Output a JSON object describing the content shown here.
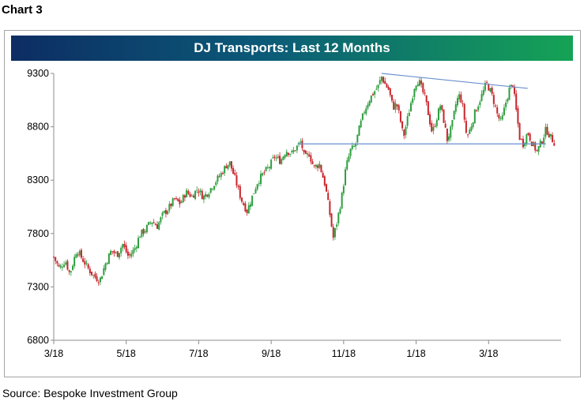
{
  "chart_label": "Chart 3",
  "source": "Source: Bespoke Investment Group",
  "chart_data": {
    "type": "candlestick",
    "title": "DJ Transports: Last 12 Months",
    "xlabel": "",
    "ylabel": "",
    "ylim": [
      6800,
      9300
    ],
    "yticks": [
      "6800",
      "7300",
      "7800",
      "8300",
      "8800",
      "9300"
    ],
    "xticks": [
      "3/18",
      "5/18",
      "7/18",
      "9/18",
      "11/18",
      "1/18",
      "3/18"
    ],
    "grid": false,
    "colors": {
      "up": "#2e9e3f",
      "down": "#c8242b",
      "trendline": "#6a8fcf"
    },
    "close_series": [
      {
        "x": 0,
        "y": 7580
      },
      {
        "x": 5,
        "y": 7470
      },
      {
        "x": 10,
        "y": 7550
      },
      {
        "x": 14,
        "y": 7420
      },
      {
        "x": 20,
        "y": 7650
      },
      {
        "x": 25,
        "y": 7560
      },
      {
        "x": 30,
        "y": 7470
      },
      {
        "x": 35,
        "y": 7400
      },
      {
        "x": 40,
        "y": 7360
      },
      {
        "x": 45,
        "y": 7520
      },
      {
        "x": 50,
        "y": 7640
      },
      {
        "x": 55,
        "y": 7600
      },
      {
        "x": 60,
        "y": 7700
      },
      {
        "x": 65,
        "y": 7580
      },
      {
        "x": 70,
        "y": 7650
      },
      {
        "x": 75,
        "y": 7790
      },
      {
        "x": 80,
        "y": 7840
      },
      {
        "x": 85,
        "y": 7920
      },
      {
        "x": 90,
        "y": 7870
      },
      {
        "x": 95,
        "y": 7980
      },
      {
        "x": 100,
        "y": 8040
      },
      {
        "x": 105,
        "y": 8120
      },
      {
        "x": 110,
        "y": 8080
      },
      {
        "x": 115,
        "y": 8190
      },
      {
        "x": 120,
        "y": 8150
      },
      {
        "x": 125,
        "y": 8220
      },
      {
        "x": 130,
        "y": 8140
      },
      {
        "x": 135,
        "y": 8200
      },
      {
        "x": 140,
        "y": 8280
      },
      {
        "x": 145,
        "y": 8350
      },
      {
        "x": 150,
        "y": 8440
      },
      {
        "x": 153,
        "y": 8460
      },
      {
        "x": 158,
        "y": 8300
      },
      {
        "x": 163,
        "y": 8120
      },
      {
        "x": 168,
        "y": 8010
      },
      {
        "x": 172,
        "y": 8130
      },
      {
        "x": 177,
        "y": 8280
      },
      {
        "x": 182,
        "y": 8360
      },
      {
        "x": 187,
        "y": 8420
      },
      {
        "x": 192,
        "y": 8520
      },
      {
        "x": 197,
        "y": 8480
      },
      {
        "x": 202,
        "y": 8580
      },
      {
        "x": 207,
        "y": 8550
      },
      {
        "x": 212,
        "y": 8620
      },
      {
        "x": 215,
        "y": 8660
      },
      {
        "x": 218,
        "y": 8500
      },
      {
        "x": 222,
        "y": 8550
      },
      {
        "x": 226,
        "y": 8420
      },
      {
        "x": 231,
        "y": 8450
      },
      {
        "x": 236,
        "y": 8250
      },
      {
        "x": 240,
        "y": 7980
      },
      {
        "x": 243,
        "y": 7760
      },
      {
        "x": 246,
        "y": 7900
      },
      {
        "x": 250,
        "y": 8120
      },
      {
        "x": 254,
        "y": 8420
      },
      {
        "x": 258,
        "y": 8580
      },
      {
        "x": 262,
        "y": 8620
      },
      {
        "x": 266,
        "y": 8800
      },
      {
        "x": 270,
        "y": 8950
      },
      {
        "x": 274,
        "y": 9050
      },
      {
        "x": 278,
        "y": 9120
      },
      {
        "x": 282,
        "y": 9180
      },
      {
        "x": 285,
        "y": 9270
      },
      {
        "x": 288,
        "y": 9200
      },
      {
        "x": 291,
        "y": 9150
      },
      {
        "x": 295,
        "y": 8980
      },
      {
        "x": 298,
        "y": 9020
      },
      {
        "x": 301,
        "y": 8880
      },
      {
        "x": 304,
        "y": 8700
      },
      {
        "x": 307,
        "y": 8850
      },
      {
        "x": 311,
        "y": 9050
      },
      {
        "x": 314,
        "y": 9200
      },
      {
        "x": 317,
        "y": 9240
      },
      {
        "x": 320,
        "y": 9150
      },
      {
        "x": 323,
        "y": 9060
      },
      {
        "x": 326,
        "y": 8900
      },
      {
        "x": 329,
        "y": 8740
      },
      {
        "x": 332,
        "y": 8850
      },
      {
        "x": 336,
        "y": 9000
      },
      {
        "x": 339,
        "y": 8860
      },
      {
        "x": 342,
        "y": 8680
      },
      {
        "x": 346,
        "y": 8800
      },
      {
        "x": 350,
        "y": 9040
      },
      {
        "x": 353,
        "y": 9100
      },
      {
        "x": 356,
        "y": 8960
      },
      {
        "x": 359,
        "y": 8700
      },
      {
        "x": 362,
        "y": 8780
      },
      {
        "x": 366,
        "y": 8930
      },
      {
        "x": 370,
        "y": 9040
      },
      {
        "x": 373,
        "y": 9120
      },
      {
        "x": 376,
        "y": 9210
      },
      {
        "x": 379,
        "y": 9150
      },
      {
        "x": 382,
        "y": 9060
      },
      {
        "x": 386,
        "y": 8900
      },
      {
        "x": 389,
        "y": 8840
      },
      {
        "x": 393,
        "y": 9030
      },
      {
        "x": 396,
        "y": 9150
      },
      {
        "x": 399,
        "y": 9200
      },
      {
        "x": 402,
        "y": 8950
      },
      {
        "x": 405,
        "y": 8700
      },
      {
        "x": 408,
        "y": 8640
      },
      {
        "x": 412,
        "y": 8750
      },
      {
        "x": 416,
        "y": 8640
      },
      {
        "x": 420,
        "y": 8570
      },
      {
        "x": 424,
        "y": 8660
      },
      {
        "x": 428,
        "y": 8780
      },
      {
        "x": 432,
        "y": 8700
      },
      {
        "x": 436,
        "y": 8640
      }
    ],
    "trendlines": [
      {
        "x": [
          285,
          412
        ],
        "y": [
          9300,
          9160
        ]
      },
      {
        "x": [
          212,
          428
        ],
        "y": [
          8640,
          8640
        ]
      }
    ],
    "x_ticks_at": [
      0,
      63,
      126,
      189,
      252,
      315,
      378
    ],
    "x_range": [
      0,
      441
    ]
  }
}
